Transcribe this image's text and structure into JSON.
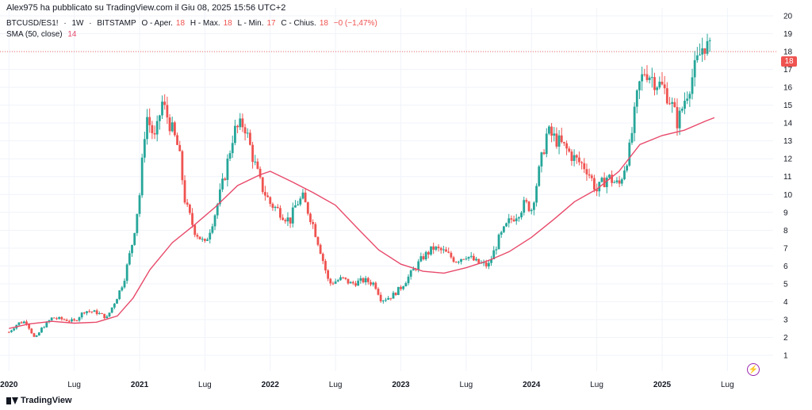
{
  "header": {
    "publisher": "Alex975 ha pubblicato su TradingView.com il Giu 08, 2025 15:56 UTC+2"
  },
  "legend": {
    "symbol": "BTCUSD/ES1!",
    "interval": "1W",
    "exchange": "BITSTAMP",
    "open_label": "O - Aper.",
    "open_value": "18",
    "high_label": "H - Max.",
    "high_value": "18",
    "low_label": "L - Min.",
    "low_value": "17",
    "close_label": "C - Chius.",
    "close_value": "18",
    "change": "−0 (−1,47%)",
    "sma_label": "SMA (50, close)",
    "sma_value": "14"
  },
  "price_tag": "18",
  "footer": {
    "brand": "TradingView"
  },
  "colors": {
    "up": "#26a69a",
    "down": "#ef5350",
    "sma": "#e84a6b",
    "grid": "#f0f3fa"
  },
  "icons": [
    "bolt-icon",
    "tradingview-logo-icon"
  ],
  "chart_data": {
    "type": "candlestick",
    "title": "",
    "xlabel": "",
    "ylabel": "",
    "ylim": [
      1,
      20
    ],
    "yticks": [
      1,
      2,
      3,
      4,
      5,
      6,
      7,
      8,
      9,
      10,
      11,
      12,
      13,
      14,
      15,
      16,
      17,
      18,
      19,
      20
    ],
    "xticks": [
      {
        "label": "2020",
        "t": 2020.0
      },
      {
        "label": "Lug",
        "t": 2020.5
      },
      {
        "label": "2021",
        "t": 2021.0
      },
      {
        "label": "Lug",
        "t": 2021.5
      },
      {
        "label": "2022",
        "t": 2022.0
      },
      {
        "label": "Lug",
        "t": 2022.5
      },
      {
        "label": "2023",
        "t": 2023.0
      },
      {
        "label": "Lug",
        "t": 2023.5
      },
      {
        "label": "2024",
        "t": 2024.0
      },
      {
        "label": "Lug",
        "t": 2024.5
      },
      {
        "label": "2025",
        "t": 2025.0
      },
      {
        "label": "Lug",
        "t": 2025.5
      }
    ],
    "xlim": [
      2019.98,
      2025.85
    ],
    "close_anchors": [
      [
        2020.0,
        2.3
      ],
      [
        2020.07,
        2.8
      ],
      [
        2020.13,
        2.9
      ],
      [
        2020.2,
        1.9
      ],
      [
        2020.25,
        2.5
      ],
      [
        2020.33,
        3.1
      ],
      [
        2020.42,
        3.0
      ],
      [
        2020.5,
        2.9
      ],
      [
        2020.58,
        3.5
      ],
      [
        2020.67,
        3.4
      ],
      [
        2020.75,
        3.1
      ],
      [
        2020.83,
        4.3
      ],
      [
        2020.88,
        5.2
      ],
      [
        2020.95,
        7.5
      ],
      [
        2021.0,
        10.0
      ],
      [
        2021.05,
        14.5
      ],
      [
        2021.12,
        13.0
      ],
      [
        2021.17,
        15.2
      ],
      [
        2021.23,
        14.0
      ],
      [
        2021.3,
        12.5
      ],
      [
        2021.35,
        9.5
      ],
      [
        2021.42,
        8.0
      ],
      [
        2021.5,
        7.2
      ],
      [
        2021.58,
        9.0
      ],
      [
        2021.65,
        11.0
      ],
      [
        2021.72,
        13.5
      ],
      [
        2021.8,
        14.0
      ],
      [
        2021.87,
        12.0
      ],
      [
        2021.93,
        10.5
      ],
      [
        2022.0,
        9.5
      ],
      [
        2022.08,
        9.0
      ],
      [
        2022.15,
        8.5
      ],
      [
        2022.2,
        9.5
      ],
      [
        2022.25,
        9.8
      ],
      [
        2022.32,
        8.5
      ],
      [
        2022.38,
        7.0
      ],
      [
        2022.45,
        5.0
      ],
      [
        2022.55,
        5.3
      ],
      [
        2022.62,
        5.0
      ],
      [
        2022.72,
        5.2
      ],
      [
        2022.8,
        5.0
      ],
      [
        2022.85,
        4.1
      ],
      [
        2022.93,
        4.3
      ],
      [
        2023.0,
        4.8
      ],
      [
        2023.08,
        5.6
      ],
      [
        2023.17,
        6.5
      ],
      [
        2023.25,
        7.0
      ],
      [
        2023.33,
        6.8
      ],
      [
        2023.42,
        6.3
      ],
      [
        2023.5,
        6.6
      ],
      [
        2023.58,
        6.2
      ],
      [
        2023.67,
        6.0
      ],
      [
        2023.75,
        7.5
      ],
      [
        2023.83,
        8.5
      ],
      [
        2023.9,
        9.0
      ],
      [
        2023.95,
        9.5
      ],
      [
        2024.0,
        9.2
      ],
      [
        2024.05,
        11.0
      ],
      [
        2024.12,
        13.5
      ],
      [
        2024.2,
        13.0
      ],
      [
        2024.27,
        12.5
      ],
      [
        2024.33,
        12.0
      ],
      [
        2024.42,
        11.5
      ],
      [
        2024.5,
        10.2
      ],
      [
        2024.58,
        11.0
      ],
      [
        2024.67,
        10.5
      ],
      [
        2024.75,
        12.5
      ],
      [
        2024.82,
        16.0
      ],
      [
        2024.87,
        17.0
      ],
      [
        2024.93,
        16.5
      ],
      [
        2025.0,
        16.0
      ],
      [
        2025.05,
        15.5
      ],
      [
        2025.12,
        14.0
      ],
      [
        2025.18,
        15.5
      ],
      [
        2025.25,
        17.0
      ],
      [
        2025.32,
        18.5
      ],
      [
        2025.37,
        18.0
      ]
    ],
    "sma_anchors": [
      [
        2020.0,
        2.5
      ],
      [
        2020.15,
        2.75
      ],
      [
        2020.33,
        2.9
      ],
      [
        2020.5,
        2.8
      ],
      [
        2020.67,
        2.85
      ],
      [
        2020.83,
        3.2
      ],
      [
        2020.95,
        4.2
      ],
      [
        2021.08,
        5.8
      ],
      [
        2021.25,
        7.3
      ],
      [
        2021.42,
        8.3
      ],
      [
        2021.58,
        9.3
      ],
      [
        2021.75,
        10.5
      ],
      [
        2021.92,
        11.1
      ],
      [
        2022.0,
        11.3
      ],
      [
        2022.17,
        10.7
      ],
      [
        2022.33,
        10.1
      ],
      [
        2022.5,
        9.4
      ],
      [
        2022.67,
        8.1
      ],
      [
        2022.83,
        6.9
      ],
      [
        2023.0,
        6.1
      ],
      [
        2023.17,
        5.7
      ],
      [
        2023.33,
        5.6
      ],
      [
        2023.5,
        5.9
      ],
      [
        2023.67,
        6.3
      ],
      [
        2023.83,
        6.8
      ],
      [
        2024.0,
        7.6
      ],
      [
        2024.17,
        8.6
      ],
      [
        2024.33,
        9.6
      ],
      [
        2024.5,
        10.3
      ],
      [
        2024.67,
        11.3
      ],
      [
        2024.83,
        12.8
      ],
      [
        2025.0,
        13.3
      ],
      [
        2025.17,
        13.6
      ],
      [
        2025.33,
        14.1
      ],
      [
        2025.4,
        14.3
      ]
    ]
  }
}
